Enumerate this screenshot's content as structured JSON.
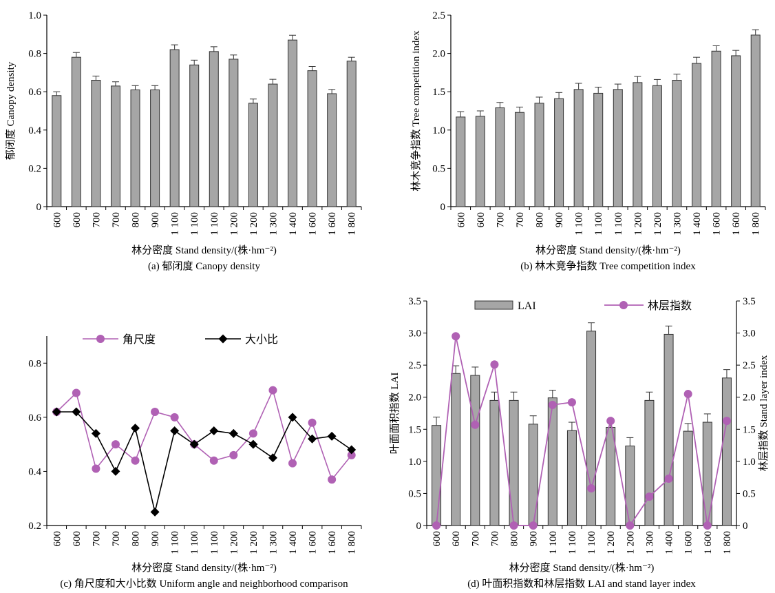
{
  "colors": {
    "bar_fill": "#a6a6a6",
    "bar_stroke": "#333333",
    "purple": "#b061b4",
    "black": "#000000"
  },
  "chart_data": [
    {
      "type": "bar",
      "title": "(a) 郁闭度 Canopy density",
      "xlabel": "林分密度 Stand density/(株·hm⁻²)",
      "ylabel": "郁闭度 Canopy density",
      "categories": [
        "600",
        "600",
        "700",
        "700",
        "800",
        "900",
        "1 100",
        "1 100",
        "1 100",
        "1 200",
        "1 200",
        "1 300",
        "1 400",
        "1 600",
        "1 600",
        "1 800"
      ],
      "series": [
        {
          "values": [
            0.58,
            0.78,
            0.66,
            0.63,
            0.61,
            0.61,
            0.82,
            0.74,
            0.81,
            0.77,
            0.54,
            0.64,
            0.87,
            0.71,
            0.59,
            0.76
          ],
          "errors": [
            0.02,
            0.025,
            0.022,
            0.022,
            0.022,
            0.022,
            0.025,
            0.025,
            0.025,
            0.022,
            0.022,
            0.025,
            0.025,
            0.022,
            0.022,
            0.02
          ]
        }
      ],
      "ylim": [
        0,
        1.0
      ],
      "yticks": [
        "0",
        "0.2",
        "0.4",
        "0.6",
        "0.8",
        "1.0"
      ],
      "grid": false
    },
    {
      "type": "bar",
      "title": "(b) 林木竞争指数 Tree competition index",
      "xlabel": "林分密度 Stand density/(株·hm⁻²)",
      "ylabel": "林木竞争指数 Tree competition index",
      "categories": [
        "600",
        "600",
        "700",
        "700",
        "800",
        "900",
        "1 100",
        "1 100",
        "1 100",
        "1 200",
        "1 200",
        "1 300",
        "1 400",
        "1 600",
        "1 600",
        "1 800"
      ],
      "series": [
        {
          "values": [
            1.17,
            1.18,
            1.29,
            1.23,
            1.35,
            1.41,
            1.53,
            1.48,
            1.53,
            1.62,
            1.58,
            1.65,
            1.87,
            2.03,
            1.97,
            2.24
          ],
          "errors": [
            0.07,
            0.07,
            0.07,
            0.07,
            0.08,
            0.08,
            0.08,
            0.08,
            0.07,
            0.08,
            0.08,
            0.08,
            0.08,
            0.07,
            0.07,
            0.07
          ]
        }
      ],
      "ylim": [
        0,
        2.5
      ],
      "yticks": [
        "0",
        "0.5",
        "1.0",
        "1.5",
        "2.0",
        "2.5"
      ],
      "grid": false
    },
    {
      "type": "line",
      "title": "(c) 角尺度和大小比数 Uniform angle and neighborhood comparison",
      "xlabel": "林分密度 Stand density/(株·hm⁻²)",
      "ylabel": "",
      "categories": [
        "600",
        "600",
        "700",
        "700",
        "800",
        "900",
        "1 100",
        "1 100",
        "1 100",
        "1 200",
        "1 200",
        "1 300",
        "1 400",
        "1 600",
        "1 600",
        "1 800"
      ],
      "series": [
        {
          "name": "角尺度",
          "marker": "circle",
          "color": "#b061b4",
          "values": [
            0.62,
            0.69,
            0.41,
            0.5,
            0.44,
            0.62,
            0.6,
            0.5,
            0.44,
            0.46,
            0.54,
            0.7,
            0.43,
            0.58,
            0.37,
            0.46
          ]
        },
        {
          "name": "大小比",
          "marker": "diamond",
          "color": "#000000",
          "values": [
            0.62,
            0.62,
            0.54,
            0.4,
            0.56,
            0.25,
            0.55,
            0.5,
            0.55,
            0.54,
            0.5,
            0.45,
            0.6,
            0.52,
            0.53,
            0.48
          ]
        }
      ],
      "ylim": [
        0.2,
        0.9
      ],
      "yticks": [
        "0.2",
        "0.4",
        "0.6",
        "0.8"
      ],
      "legend": "top",
      "grid": false
    },
    {
      "type": "bar",
      "title": "(d) 叶面积指数和林层指数 LAI and stand layer index",
      "xlabel": "林分密度 Stand density/(株·hm⁻²)",
      "ylabel": "叶面面积指数 LAI",
      "y2label": "林层指数 Stand layer index",
      "categories": [
        "600",
        "600",
        "700",
        "700",
        "800",
        "900",
        "1 100",
        "1 100",
        "1 100",
        "1 200",
        "1 200",
        "1 300",
        "1 400",
        "1 600",
        "1 600",
        "1 800"
      ],
      "series": [
        {
          "name": "LAI",
          "type": "bar",
          "values": [
            1.56,
            2.37,
            2.34,
            1.95,
            1.95,
            1.58,
            1.99,
            1.48,
            3.03,
            1.53,
            1.24,
            1.95,
            2.98,
            1.47,
            1.61,
            2.3
          ],
          "errors": [
            0.13,
            0.12,
            0.13,
            0.13,
            0.13,
            0.13,
            0.12,
            0.13,
            0.13,
            0.12,
            0.13,
            0.13,
            0.13,
            0.12,
            0.13,
            0.13
          ]
        },
        {
          "name": "林层指数",
          "type": "line",
          "axis": "right",
          "color": "#b061b4",
          "values": [
            0.0,
            2.95,
            1.57,
            2.51,
            0.0,
            0.0,
            1.88,
            1.92,
            0.58,
            1.63,
            0.0,
            0.45,
            0.73,
            2.05,
            0.0,
            1.63
          ]
        }
      ],
      "ylim": [
        0,
        3.5
      ],
      "yticks": [
        "0",
        "0.5",
        "1.0",
        "1.5",
        "2.0",
        "2.5",
        "3.0",
        "3.5"
      ],
      "y2ticks": [
        "0",
        "0.5",
        "1.0",
        "1.5",
        "2.0",
        "2.5",
        "3.0",
        "3.5"
      ],
      "legend": "top",
      "grid": false
    }
  ]
}
